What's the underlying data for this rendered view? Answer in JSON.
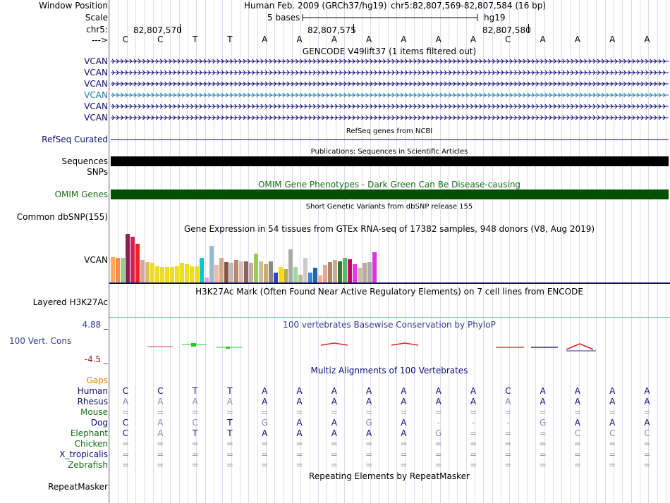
{
  "header": {
    "window_position_label": "Window Position",
    "assembly": "Human Feb. 2009 (GRCh37/hg19)",
    "position": "chr5:82,807,569-82,807,584 (16 bp)",
    "scale_label": "Scale",
    "scale_text": "5 bases",
    "scale_db": "hg19",
    "chrom_label": "chr5:",
    "ticks": [
      "82,807,570",
      "82,807,575",
      "82,807,580"
    ],
    "strand_label": "--->"
  },
  "bases": [
    "C",
    "C",
    "T",
    "T",
    "A",
    "A",
    "A",
    "A",
    "A",
    "A",
    "A",
    "C",
    "A",
    "A",
    "A",
    "A"
  ],
  "gencode": {
    "title": "GENCODE V49lift37 (1 items filtered out)",
    "rows": [
      "VCAN",
      "VCAN",
      "VCAN",
      "VCAN",
      "VCAN",
      "VCAN"
    ],
    "colors": [
      "#0c0c78",
      "#0c0c78",
      "#0c0c78",
      "#1a7fa0",
      "#0c0c78",
      "#0c0c78"
    ]
  },
  "refseq": {
    "title": "RefSeq genes from NCBI",
    "label": "RefSeq Curated"
  },
  "publications": {
    "title": "Publications: Sequences in Scientific Articles",
    "labels": [
      "Sequences",
      "SNPs"
    ]
  },
  "omim": {
    "title": "OMIM Gene Phenotypes - Dark Green Can Be Disease-causing",
    "label": "OMIM Genes"
  },
  "dbsnp": {
    "title": "Short Genetic Variants from dbSNP release 155",
    "label": "Common dbSNP(155)"
  },
  "gtex": {
    "title": "Gene Expression in 54 tissues from GTEx RNA-seq of 17382 samples, 948 donors (V8, Aug 2019)",
    "label": "VCAN",
    "values": [
      0.52,
      0.5,
      0.5,
      1.0,
      0.94,
      0.8,
      0.46,
      0.42,
      0.4,
      0.34,
      0.32,
      0.32,
      0.32,
      0.34,
      0.4,
      0.38,
      0.34,
      0.34,
      0.5,
      0.1,
      0.75,
      0.36,
      0.5,
      0.42,
      0.4,
      0.46,
      0.44,
      0.44,
      0.4,
      0.6,
      0.44,
      0.38,
      0.44,
      0.2,
      0.32,
      0.28,
      0.68,
      0.32,
      0.16,
      0.5,
      0.2,
      0.3,
      0.14,
      0.36,
      0.42,
      0.46,
      0.44,
      0.5,
      0.48,
      0.38,
      0.3,
      0.4,
      0.42,
      0.62
    ],
    "colors": [
      "#ffaa55",
      "#ff8a55",
      "#99cc88",
      "#882255",
      "#cc2255",
      "#ee2222",
      "#ccaa99",
      "#ddbb77",
      "#eedd22",
      "#eedd22",
      "#eedd22",
      "#eedd22",
      "#eedd22",
      "#eedd22",
      "#eedd22",
      "#eedd22",
      "#eedd22",
      "#eedd22",
      "#00cccc",
      "#ee99ee",
      "#99bbcc",
      "#eebbaa",
      "#ccaa88",
      "#885544",
      "#bbbbbb",
      "#bb8866",
      "#ddbbbb",
      "#886655",
      "#ccaa99",
      "#99cc55",
      "#ccbbaa",
      "#ccaa77",
      "#888888",
      "#3344cc",
      "#ffdd00",
      "#bbaa55",
      "#aaaaaa",
      "#99dd99",
      "#bbbb99",
      "#cccccc",
      "#3388dd",
      "#2266aa",
      "#ffaa88",
      "#ddaa99",
      "#aa8866",
      "#ccaa99",
      "#337733",
      "#55bb66",
      "#cc0066",
      "#ee33ee",
      "#ccbbaa",
      "#bbaa99",
      "#aaaaaa",
      "#dd33dd"
    ]
  },
  "h3k27ac": {
    "title": "H3K27Ac Mark (Often Found Near Active Regulatory Elements) on 7 cell lines from ENCODE",
    "label": "Layered H3K27Ac"
  },
  "phylop": {
    "title": "100 vertebrates Basewise Conservation by PhyloP",
    "label": "100 Vert. Cons",
    "max": "4.88 _",
    "min": "-4.5 _"
  },
  "multiz": {
    "title": "Multiz Alignments of 100 Vertebrates",
    "gaps_label": "Gaps",
    "rows": [
      {
        "species": "Human",
        "color": "#0c0c78",
        "seq": [
          "C",
          "C",
          "T",
          "T",
          "A",
          "A",
          "A",
          "A",
          "A",
          "A",
          "A",
          "C",
          "A",
          "A",
          "A",
          "A"
        ]
      },
      {
        "species": "Rhesus",
        "color": "#0c0c78",
        "seq": [
          "A",
          "A",
          "A",
          "A",
          "A",
          "A",
          "A",
          "A",
          "A",
          "A",
          "A",
          "A",
          "A",
          "A",
          "A",
          "A"
        ]
      },
      {
        "species": "Mouse",
        "color": "#146e14",
        "seq": [
          "=",
          "=",
          "=",
          "=",
          "=",
          "=",
          "=",
          "=",
          "=",
          "=",
          "=",
          "=",
          "=",
          "=",
          "=",
          "="
        ]
      },
      {
        "species": "Dog",
        "color": "#0c0c78",
        "seq": [
          "C",
          "A",
          "C",
          "T",
          "G",
          "A",
          "A",
          "G",
          "A",
          "-",
          "-",
          "-",
          "G",
          "A",
          "A",
          "A"
        ]
      },
      {
        "species": "Elephant",
        "color": "#146e14",
        "seq": [
          "C",
          "A",
          "T",
          "T",
          "A",
          "A",
          "A",
          "A",
          "A",
          "G",
          "=",
          "=",
          "=",
          "C",
          "C",
          "C"
        ]
      },
      {
        "species": "Chicken",
        "color": "#146e14",
        "seq": [
          "=",
          "=",
          "=",
          "=",
          "=",
          "=",
          "=",
          "=",
          "=",
          "=",
          "=",
          "=",
          "=",
          "=",
          "=",
          "="
        ]
      },
      {
        "species": "X_tropicalis",
        "color": "#0c0c78",
        "seq": [
          "=",
          "=",
          "=",
          "=",
          "=",
          "=",
          "=",
          "=",
          "=",
          "=",
          "=",
          "=",
          "=",
          "=",
          "=",
          "="
        ]
      },
      {
        "species": "Zebrafish",
        "color": "#146e14",
        "seq": [
          "=",
          "=",
          "=",
          "=",
          "=",
          "=",
          "=",
          "=",
          "=",
          "=",
          "=",
          "=",
          "=",
          "=",
          "=",
          "="
        ]
      }
    ]
  },
  "repeatmasker": {
    "title": "Repeating Elements by RepeatMasker",
    "label": "RepeatMasker"
  }
}
